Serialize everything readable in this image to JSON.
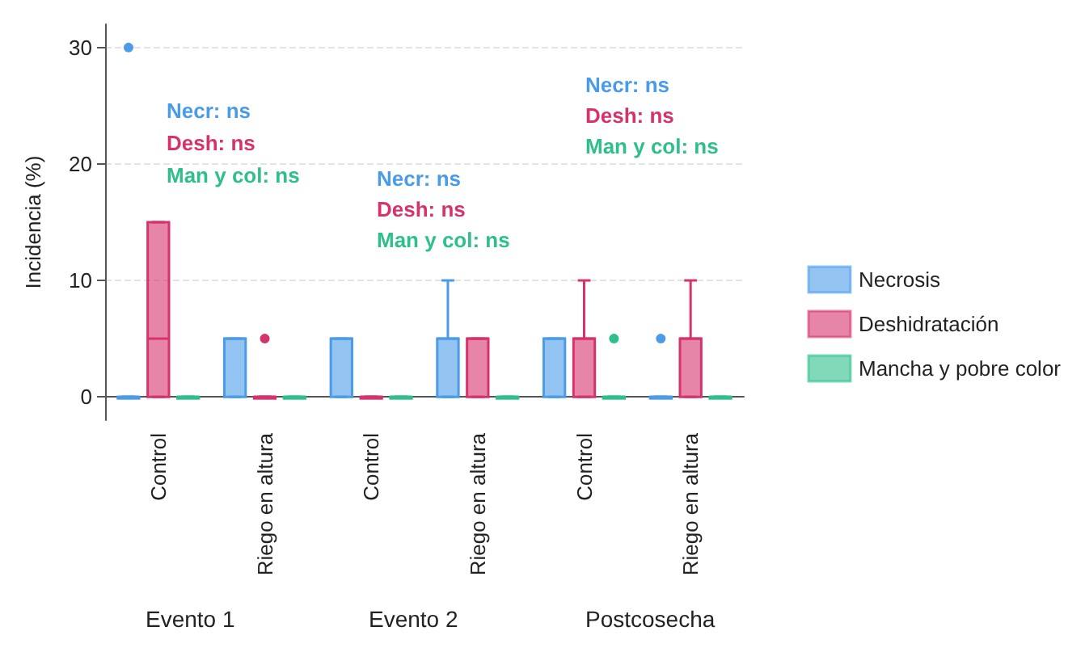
{
  "chart_data": {
    "type": "box",
    "ylabel": "Incidencia (%)",
    "categories": [
      "Control",
      "Riego en altura",
      "Control",
      "Riego en altura",
      "Control",
      "Riego en altura"
    ],
    "ylim": [
      -2,
      32
    ],
    "yticks": [
      0,
      10,
      20,
      30
    ],
    "grid": "y",
    "legend": "right",
    "series": [
      {
        "name": "Necrosis",
        "color": "#4a9be8",
        "boxes": [
          {
            "low": 0,
            "q1": 0,
            "median": 0,
            "q3": 0,
            "high": 0,
            "outliers": [
              30
            ]
          },
          {
            "low": 0,
            "q1": 0,
            "median": 5,
            "q3": 5,
            "high": 5
          },
          {
            "low": 0,
            "q1": 0,
            "median": 5,
            "q3": 5,
            "high": 5
          },
          {
            "low": 0,
            "q1": 0,
            "median": 5,
            "q3": 5,
            "high": 10
          },
          {
            "low": 0,
            "q1": 0,
            "median": 5,
            "q3": 5,
            "high": 5
          },
          {
            "low": 0,
            "q1": 0,
            "median": 0,
            "q3": 0,
            "high": 0,
            "outliers": [
              5
            ]
          }
        ]
      },
      {
        "name": "Deshidratación",
        "color": "#d6336c",
        "boxes": [
          {
            "low": 0,
            "q1": 0,
            "median": 5,
            "q3": 15,
            "high": 15
          },
          {
            "low": 0,
            "q1": 0,
            "median": 0,
            "q3": 0,
            "high": 0,
            "outliers": [
              5
            ]
          },
          {
            "low": 0,
            "q1": 0,
            "median": 0,
            "q3": 0,
            "high": 0
          },
          {
            "low": 0,
            "q1": 0,
            "median": 5,
            "q3": 5,
            "high": 5
          },
          {
            "low": 0,
            "q1": 0,
            "median": 5,
            "q3": 5,
            "high": 10
          },
          {
            "low": 0,
            "q1": 0,
            "median": 5,
            "q3": 5,
            "high": 10
          }
        ]
      },
      {
        "name": "Mancha y pobre color",
        "color": "#2fbf8a",
        "boxes": [
          {
            "low": 0,
            "q1": 0,
            "median": 0,
            "q3": 0,
            "high": 0
          },
          {
            "low": 0,
            "q1": 0,
            "median": 0,
            "q3": 0,
            "high": 0
          },
          {
            "low": 0,
            "q1": 0,
            "median": 0,
            "q3": 0,
            "high": 0
          },
          {
            "low": 0,
            "q1": 0,
            "median": 0,
            "q3": 0,
            "high": 0
          },
          {
            "low": 0,
            "q1": 0,
            "median": 0,
            "q3": 0,
            "high": 0,
            "outliers": [
              5
            ]
          },
          {
            "low": 0,
            "q1": 0,
            "median": 0,
            "q3": 0,
            "high": 0
          }
        ]
      }
    ],
    "annotations": [
      "Necr: ns",
      "Desh: ns",
      "Man y col: ns",
      "Necr: ns",
      "Desh: ns",
      "Man y col: ns",
      "Necr: ns",
      "Desh: ns",
      "Man y col: ns",
      "Evento 1",
      "Evento 2",
      "Postcosecha"
    ]
  }
}
